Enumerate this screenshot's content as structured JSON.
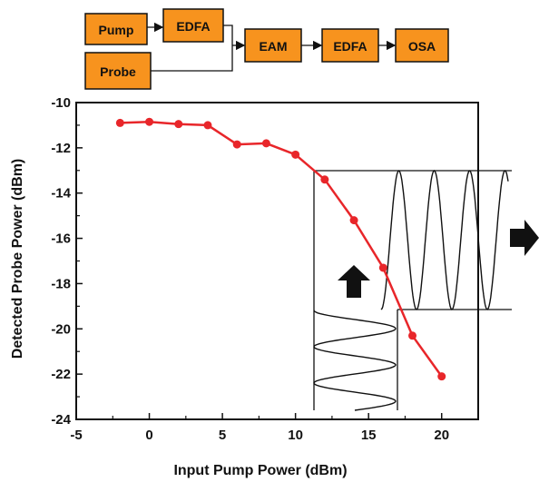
{
  "diagram": {
    "box_color": "#f7931e",
    "blocks": [
      {
        "id": "pump",
        "label": "Pump"
      },
      {
        "id": "probe",
        "label": "Probe"
      },
      {
        "id": "edfa1",
        "label": "EDFA"
      },
      {
        "id": "eam",
        "label": "EAM"
      },
      {
        "id": "edfa2",
        "label": "EDFA"
      },
      {
        "id": "osa",
        "label": "OSA"
      }
    ]
  },
  "chart_data": {
    "type": "line",
    "xlabel": "Input Pump Power (dBm)",
    "ylabel": "Detected Probe Power (dBm)",
    "xlim": [
      -5,
      22.5
    ],
    "ylim": [
      -24,
      -10
    ],
    "xticks": [
      -5,
      0,
      5,
      10,
      15,
      20
    ],
    "yticks": [
      -10,
      -12,
      -14,
      -16,
      -18,
      -20,
      -22,
      -24
    ],
    "grid": false,
    "series_color": "#e8262a",
    "series": [
      {
        "x": [
          -2,
          0,
          2,
          4,
          6,
          8,
          10,
          12,
          14,
          16,
          18,
          20
        ],
        "y": [
          -10.9,
          -10.85,
          -10.95,
          -11.0,
          -11.85,
          -11.8,
          -12.3,
          -13.4,
          -15.2,
          -17.3,
          -20.3,
          -22.1
        ]
      }
    ]
  }
}
